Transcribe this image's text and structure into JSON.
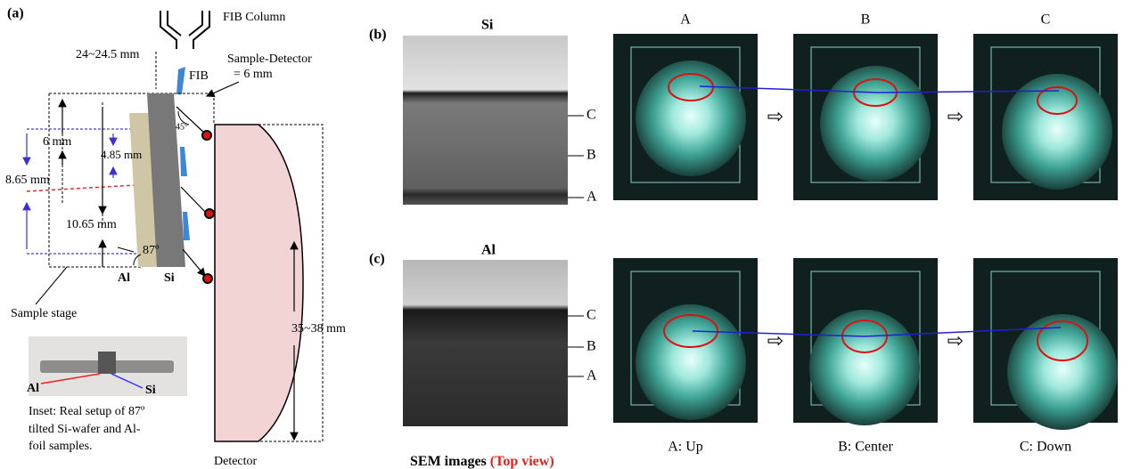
{
  "panel_a": {
    "label": "(a)",
    "fib_column": "FIB Column",
    "working_distance": "24~24.5 mm",
    "sample_detector": [
      "Sample-Detector",
      "= 6 mm"
    ],
    "fib": "FIB",
    "angle_45": "45°",
    "dim_6": "6 mm",
    "dim_485": "4.85 mm",
    "dim_865": "8.65 mm",
    "dim_1065": "10.65 mm",
    "angle_87": "87º",
    "al": "Al",
    "si": "Si",
    "sample_stage": "Sample stage",
    "detector_size": "35~38 mm",
    "detector": "Detector",
    "inset_al": "Al",
    "inset_si": "Si",
    "inset_caption": [
      "Inset: Real setup of 87º",
      "tilted Si-wafer and Al-",
      "foil samples."
    ]
  },
  "panel_b": {
    "label": "(b)",
    "sem_title": "Si",
    "sem_marks": [
      "C",
      "B",
      "A"
    ],
    "columns": [
      "A",
      "B",
      "C"
    ]
  },
  "panel_c": {
    "label": "(c)",
    "sem_title": "Al",
    "sem_marks": [
      "C",
      "B",
      "A"
    ],
    "columns": [
      "A: Up",
      "B: Center",
      "C: Down"
    ]
  },
  "footer": {
    "sem_images": "SEM images",
    "top_view": "(Top view)"
  }
}
